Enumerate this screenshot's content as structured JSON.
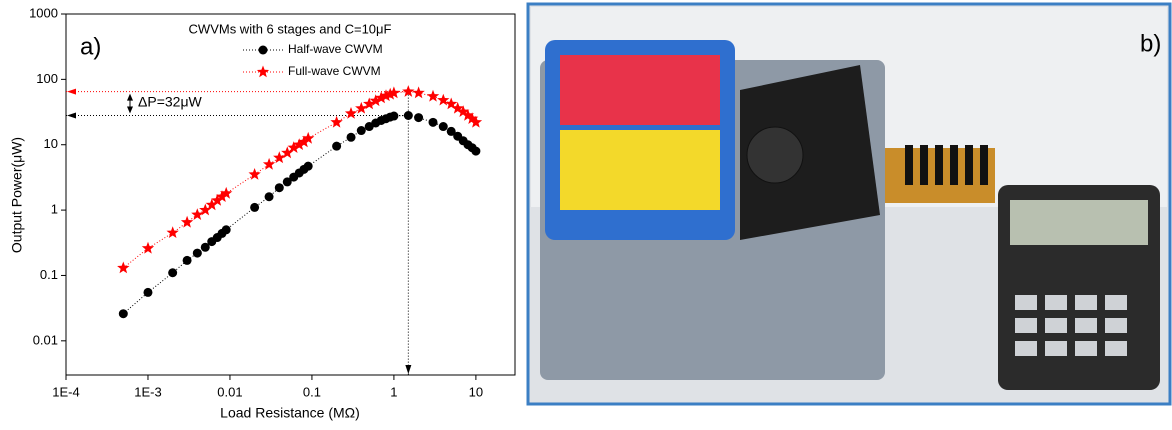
{
  "chart_data": {
    "type": "scatter",
    "title": "CWVMs with 6 stages and C=10μF",
    "panel_label": "a)",
    "photo_label": "b)",
    "x_label": "Load Resistance (MΩ)",
    "y_label": "Output Power(μW)",
    "annotation": "ΔP=32μW",
    "log_x": true,
    "log_y": true,
    "xlim": [
      0.0001,
      30
    ],
    "ylim": [
      0.003,
      1000
    ],
    "xticks": [
      {
        "value": 0.0001,
        "label": "1E-4"
      },
      {
        "value": 0.001,
        "label": "1E-3"
      },
      0.01,
      0.1,
      1,
      10
    ],
    "yticks": [
      0.01,
      0.1,
      1,
      10,
      100,
      1000
    ],
    "x": [
      0.0005,
      0.001,
      0.002,
      0.003,
      0.004,
      0.005,
      0.006,
      0.007,
      0.008,
      0.009,
      0.02,
      0.03,
      0.04,
      0.05,
      0.06,
      0.07,
      0.08,
      0.09,
      0.2,
      0.3,
      0.4,
      0.5,
      0.6,
      0.7,
      0.8,
      0.9,
      1,
      1.5,
      2,
      3,
      4,
      5,
      6,
      7,
      8,
      9,
      10
    ],
    "series": [
      {
        "name": "Half-wave CWVM",
        "color": "#000000",
        "marker": "circle",
        "values": [
          0.026,
          0.055,
          0.11,
          0.17,
          0.22,
          0.27,
          0.33,
          0.38,
          0.44,
          0.5,
          1.1,
          1.6,
          2.2,
          2.7,
          3.2,
          3.7,
          4.2,
          4.7,
          9.5,
          13,
          16.5,
          19,
          21.5,
          23.5,
          25,
          26.5,
          27.5,
          28,
          26,
          22,
          19,
          16,
          13.5,
          11.5,
          10,
          9,
          8
        ]
      },
      {
        "name": "Full-wave CWVM",
        "color": "#ff0000",
        "marker": "star",
        "values": [
          0.13,
          0.26,
          0.45,
          0.65,
          0.85,
          1.0,
          1.2,
          1.4,
          1.6,
          1.8,
          3.5,
          5,
          6.3,
          7.5,
          9,
          10,
          11,
          12.5,
          22,
          30,
          36,
          42,
          47,
          52,
          56,
          59,
          62,
          65,
          62,
          55,
          48,
          42,
          36,
          32,
          28,
          25,
          22
        ]
      }
    ]
  }
}
